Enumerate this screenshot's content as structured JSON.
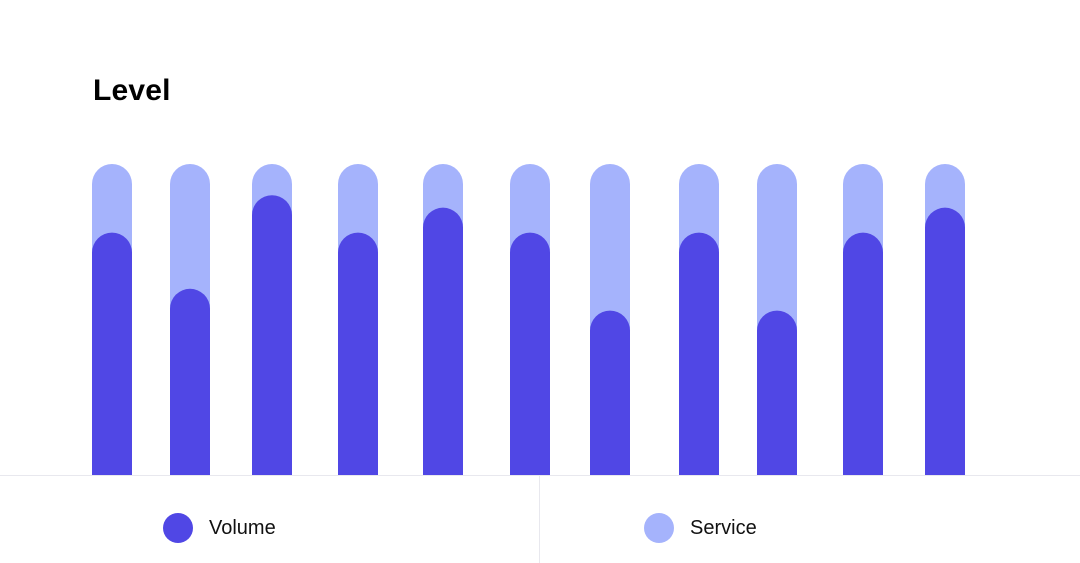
{
  "chart_data": {
    "type": "bar",
    "stacked": true,
    "title": "Level",
    "categories": [
      "",
      "",
      "",
      "",
      "",
      "",
      "",
      "",
      "",
      "",
      ""
    ],
    "ylim": [
      0,
      100
    ],
    "grid": false,
    "legend_position": "bottom",
    "series": [
      {
        "name": "Volume",
        "color": "#5047e5",
        "values": [
          78,
          60,
          90,
          78,
          86,
          78,
          53,
          78,
          53,
          78,
          86
        ]
      },
      {
        "name": "Service",
        "color": "#a5b3fc",
        "values": [
          22,
          40,
          10,
          22,
          14,
          22,
          47,
          22,
          47,
          22,
          14
        ]
      }
    ]
  }
}
